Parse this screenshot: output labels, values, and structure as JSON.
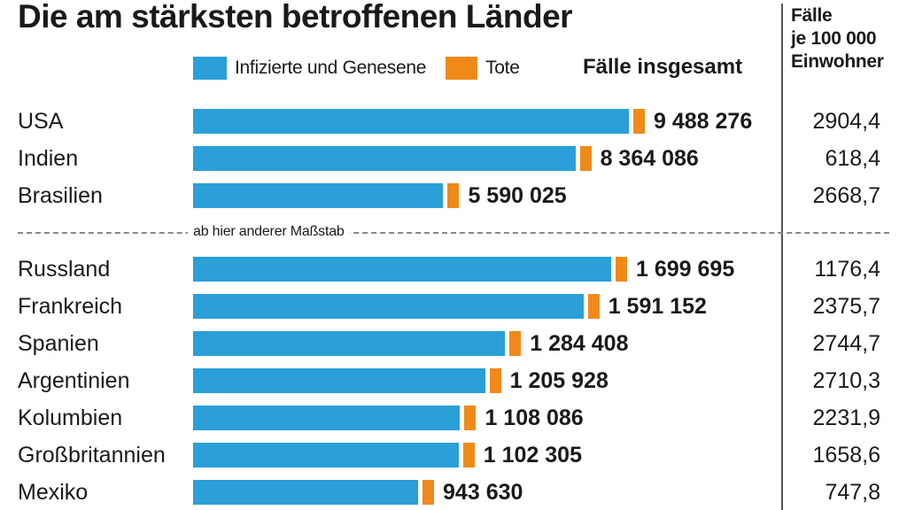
{
  "chart_data": {
    "type": "bar",
    "title": "Die am stärksten betroffenen Länder",
    "legend": [
      {
        "label": "Infizierte und Genesene",
        "color": "#2a9fd8"
      },
      {
        "label": "Tote",
        "color": "#ef8a1a"
      }
    ],
    "total_header": "Fälle insgesamt",
    "per_capita_header": [
      "Fälle",
      "je 100 000",
      "Einwohner"
    ],
    "scale_note": "ab hier anderer Maßstab",
    "groups": [
      {
        "rows": [
          {
            "country": "USA",
            "total_label": "9 488 276",
            "total": 9488276,
            "per_100k": "2904,4"
          },
          {
            "country": "Indien",
            "total_label": "8 364 086",
            "total": 8364086,
            "per_100k": "618,4"
          },
          {
            "country": "Brasilien",
            "total_label": "5 590 025",
            "total": 5590025,
            "per_100k": "2668,7"
          }
        ]
      },
      {
        "rows": [
          {
            "country": "Russland",
            "total_label": "1 699 695",
            "total": 1699695,
            "per_100k": "1176,4"
          },
          {
            "country": "Frankreich",
            "total_label": "1 591 152",
            "total": 1591152,
            "per_100k": "2375,7"
          },
          {
            "country": "Spanien",
            "total_label": "1 284 408",
            "total": 1284408,
            "per_100k": "2744,7"
          },
          {
            "country": "Argentinien",
            "total_label": "1 205 928",
            "total": 1205928,
            "per_100k": "2710,3"
          },
          {
            "country": "Kolumbien",
            "total_label": "1 108 086",
            "total": 1108086,
            "per_100k": "2231,9"
          },
          {
            "country": "Großbritannien",
            "total_label": "1 102 305",
            "total": 1102305,
            "per_100k": "1658,6"
          },
          {
            "country": "Mexiko",
            "total_label": "943 630",
            "total": 943630,
            "per_100k": "747,8"
          }
        ]
      }
    ]
  }
}
